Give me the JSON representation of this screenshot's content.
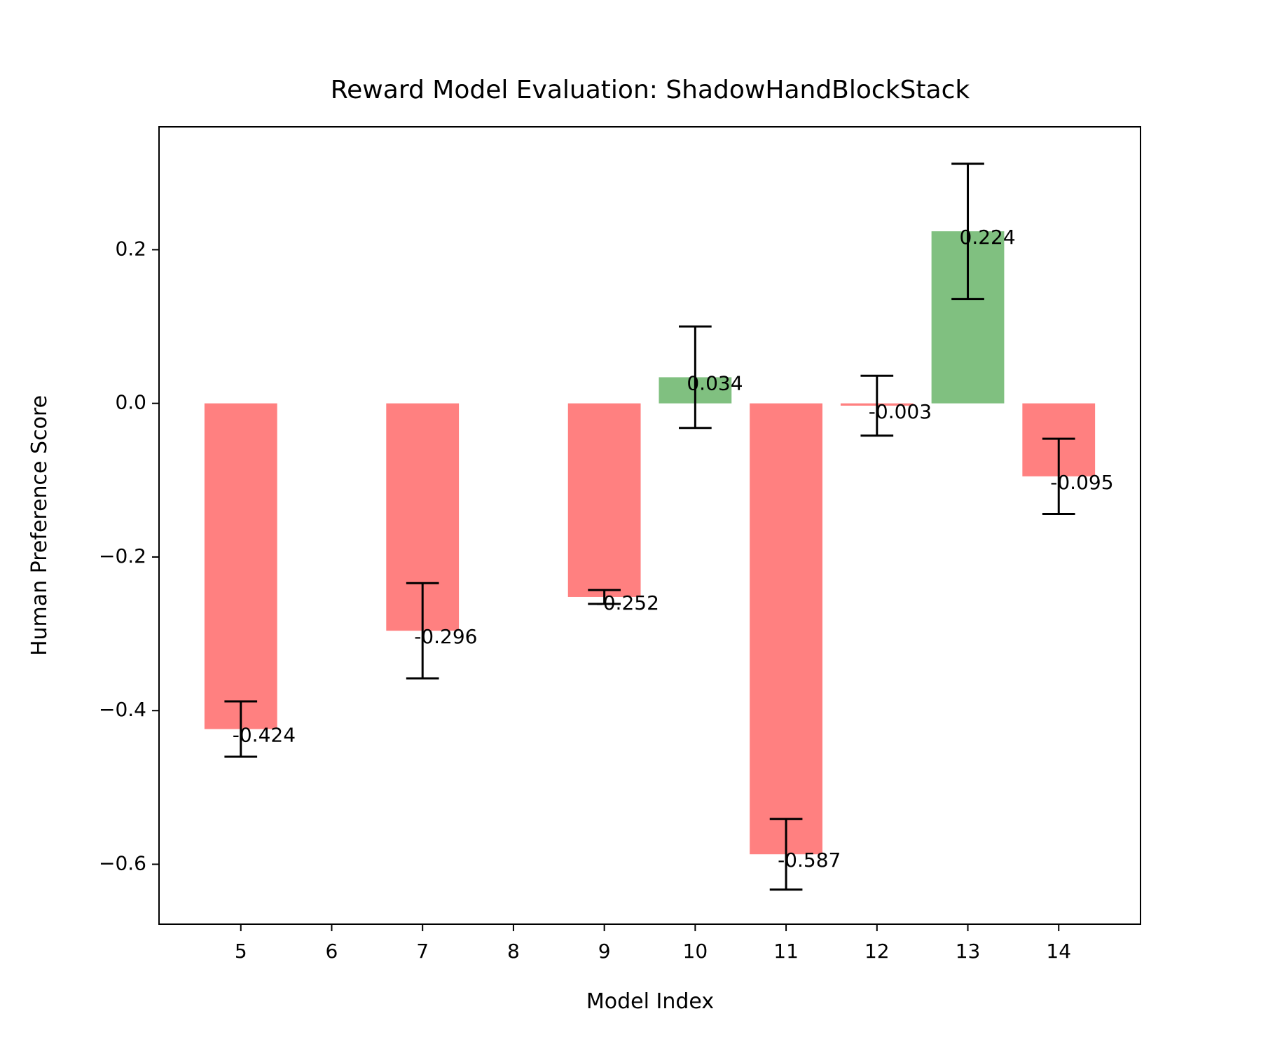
{
  "chart_data": {
    "type": "bar",
    "title": "Reward Model Evaluation: ShadowHandBlockStack",
    "xlabel": "Model Index",
    "ylabel": "Human Preference Score",
    "x": [
      5,
      7,
      9,
      10,
      11,
      12,
      13,
      14
    ],
    "values": [
      -0.424,
      -0.296,
      -0.252,
      0.034,
      -0.587,
      -0.003,
      0.224,
      -0.095
    ],
    "errors": [
      0.036,
      0.062,
      0.009,
      0.066,
      0.046,
      0.039,
      0.088,
      0.049
    ],
    "value_labels": [
      "-0.424",
      "-0.296",
      "-0.252",
      "0.034",
      "-0.587",
      "-0.003",
      "0.224",
      "-0.095"
    ],
    "xticks": [
      5,
      6,
      7,
      8,
      9,
      10,
      11,
      12,
      13,
      14
    ],
    "yticks": [
      -0.6,
      -0.4,
      -0.2,
      0.0,
      0.2
    ],
    "ytick_labels": [
      "−0.6",
      "−0.4",
      "−0.2",
      "0.0",
      "0.2"
    ],
    "xlim": [
      4.1,
      14.9
    ],
    "ylim": [
      -0.678,
      0.36
    ],
    "colors": {
      "positive": "#80c080",
      "negative": "#ff8080",
      "error": "#000000"
    },
    "grid": false,
    "legend": "none"
  }
}
